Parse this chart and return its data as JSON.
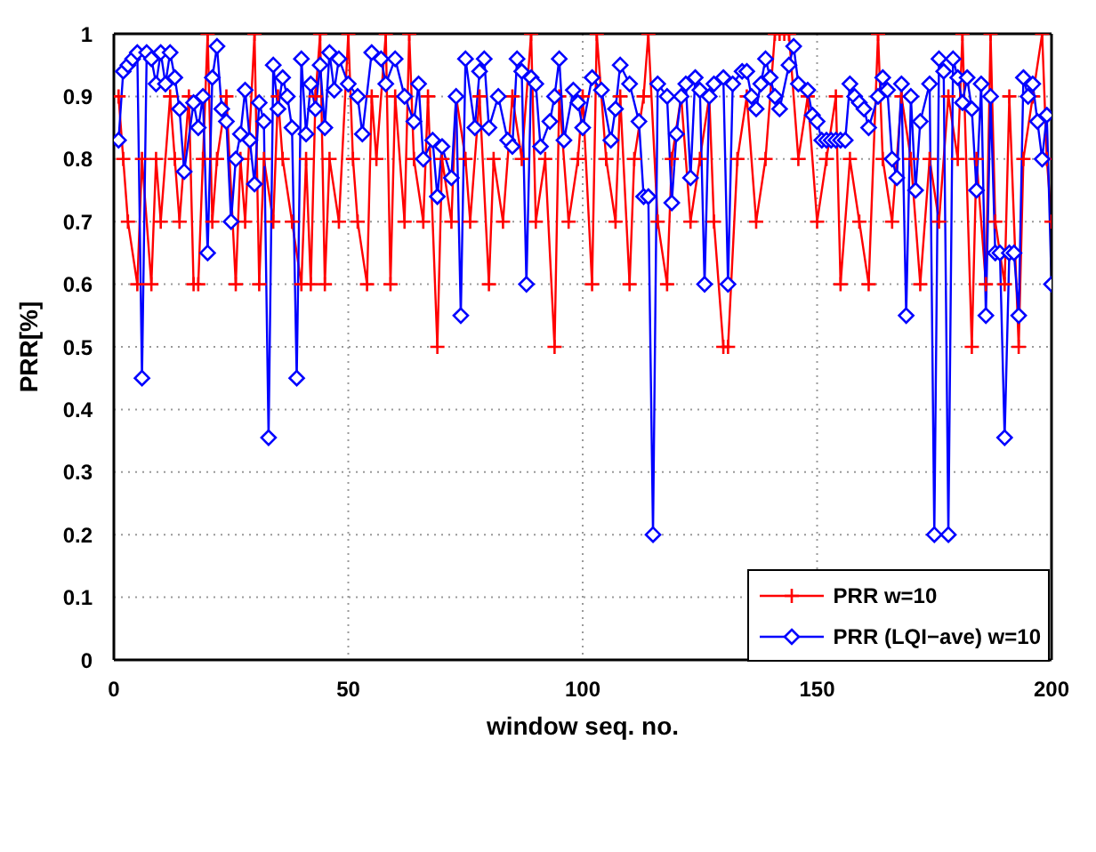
{
  "chart_data": {
    "type": "line",
    "xlabel": "window seq. no.",
    "ylabel": "PRR[%]",
    "xlim": [
      0,
      200
    ],
    "xticks": [
      0,
      50,
      100,
      150,
      200
    ],
    "ylim": [
      0,
      1
    ],
    "yticks": [
      0,
      0.1,
      0.2,
      0.3,
      0.4,
      0.5,
      0.6,
      0.7,
      0.8,
      0.9,
      1
    ],
    "grid": true,
    "legend": "bottom right",
    "series": [
      {
        "name": "PRR w=10",
        "color": "#ff0000",
        "marker": "cross",
        "x": [
          1,
          2,
          3,
          5,
          6,
          8,
          9,
          10,
          12,
          13,
          14,
          16,
          17,
          18,
          19,
          20,
          21,
          22,
          24,
          26,
          27,
          28,
          30,
          31,
          32,
          34,
          35,
          36,
          38,
          40,
          41,
          42,
          43,
          44,
          45,
          46,
          48,
          50,
          51,
          52,
          54,
          55,
          56,
          58,
          59,
          60,
          62,
          63,
          64,
          66,
          67,
          69,
          70,
          72,
          73,
          75,
          76,
          78,
          80,
          81,
          83,
          85,
          87,
          89,
          90,
          92,
          94,
          95,
          97,
          99,
          100,
          102,
          103,
          105,
          107,
          108,
          110,
          111,
          113,
          114,
          116,
          118,
          119,
          121,
          123,
          125,
          127,
          128,
          130,
          131,
          133,
          135,
          137,
          139,
          141,
          142,
          143,
          144,
          146,
          148,
          150,
          152,
          154,
          155,
          157,
          159,
          161,
          163,
          164,
          166,
          168,
          170,
          172,
          174,
          176,
          178,
          180,
          181,
          183,
          184,
          186,
          187,
          188,
          190,
          191,
          193,
          194,
          196,
          198,
          199,
          200
        ],
        "values": [
          0.9,
          0.8,
          0.7,
          0.6,
          0.8,
          0.6,
          0.8,
          0.7,
          0.9,
          0.8,
          0.7,
          0.9,
          0.6,
          0.6,
          0.8,
          1,
          0.7,
          0.8,
          0.9,
          0.6,
          0.8,
          0.7,
          1,
          0.6,
          0.8,
          0.7,
          0.9,
          0.8,
          0.7,
          0.6,
          0.8,
          0.6,
          0.9,
          1,
          0.6,
          0.8,
          0.7,
          1,
          0.8,
          0.7,
          0.6,
          0.9,
          0.8,
          1,
          0.6,
          0.9,
          0.7,
          1,
          0.8,
          0.7,
          0.9,
          0.5,
          0.8,
          0.7,
          0.9,
          0.8,
          0.7,
          0.9,
          0.6,
          0.8,
          0.7,
          0.9,
          0.8,
          1,
          0.7,
          0.8,
          0.5,
          0.9,
          0.7,
          0.8,
          0.9,
          0.6,
          1,
          0.8,
          0.7,
          0.9,
          0.6,
          0.8,
          0.9,
          1,
          0.7,
          0.6,
          0.8,
          0.9,
          0.7,
          0.8,
          0.9,
          0.7,
          0.5,
          0.5,
          0.8,
          0.9,
          0.7,
          0.8,
          1,
          1,
          1,
          1,
          0.8,
          0.9,
          0.7,
          0.8,
          0.9,
          0.6,
          0.8,
          0.7,
          0.6,
          1,
          0.8,
          0.7,
          0.9,
          0.8,
          0.6,
          0.8,
          0.7,
          0.9,
          0.8,
          1,
          0.5,
          0.8,
          0.6,
          1,
          0.7,
          0.6,
          0.9,
          0.5,
          0.8,
          0.9,
          1,
          0.8,
          0.7
        ]
      },
      {
        "name": "PRR (LQI−ave) w=10",
        "color": "#0000ff",
        "marker": "diamond",
        "x": [
          1,
          2,
          3,
          4,
          5,
          6,
          7,
          8,
          9,
          10,
          11,
          12,
          13,
          14,
          15,
          17,
          18,
          19,
          20,
          21,
          22,
          23,
          24,
          25,
          26,
          27,
          28,
          29,
          30,
          31,
          32,
          33,
          34,
          35,
          36,
          37,
          38,
          39,
          40,
          41,
          42,
          43,
          44,
          45,
          46,
          47,
          48,
          50,
          52,
          53,
          55,
          57,
          58,
          60,
          62,
          64,
          65,
          66,
          68,
          69,
          70,
          72,
          73,
          74,
          75,
          77,
          78,
          79,
          80,
          82,
          84,
          85,
          86,
          87,
          88,
          89,
          90,
          91,
          93,
          94,
          95,
          96,
          98,
          99,
          100,
          102,
          104,
          106,
          107,
          108,
          110,
          112,
          113,
          114,
          115,
          116,
          118,
          119,
          120,
          121,
          122,
          123,
          124,
          125,
          126,
          127,
          128,
          130,
          131,
          132,
          134,
          135,
          136,
          137,
          138,
          139,
          140,
          141,
          142,
          144,
          145,
          146,
          148,
          149,
          150,
          151,
          152,
          153,
          154,
          155,
          156,
          157,
          158,
          159,
          160,
          161,
          163,
          164,
          165,
          166,
          167,
          168,
          169,
          170,
          171,
          172,
          174,
          175,
          176,
          177,
          178,
          179,
          180,
          181,
          182,
          183,
          184,
          185,
          186,
          187,
          188,
          189,
          190,
          191,
          192,
          193,
          194,
          195,
          196,
          197,
          198,
          199,
          200
        ],
        "values": [
          0.83,
          0.94,
          0.95,
          0.96,
          0.97,
          0.45,
          0.97,
          0.96,
          0.92,
          0.97,
          0.92,
          0.97,
          0.93,
          0.88,
          0.78,
          0.89,
          0.85,
          0.9,
          0.65,
          0.93,
          0.98,
          0.88,
          0.86,
          0.7,
          0.8,
          0.84,
          0.91,
          0.83,
          0.76,
          0.89,
          0.86,
          0.355,
          0.95,
          0.88,
          0.93,
          0.9,
          0.85,
          0.45,
          0.96,
          0.84,
          0.92,
          0.88,
          0.95,
          0.85,
          0.97,
          0.91,
          0.96,
          0.92,
          0.9,
          0.84,
          0.97,
          0.96,
          0.92,
          0.96,
          0.9,
          0.86,
          0.92,
          0.8,
          0.83,
          0.74,
          0.82,
          0.77,
          0.9,
          0.55,
          0.96,
          0.85,
          0.94,
          0.96,
          0.85,
          0.9,
          0.83,
          0.82,
          0.96,
          0.94,
          0.6,
          0.93,
          0.92,
          0.82,
          0.86,
          0.9,
          0.96,
          0.83,
          0.91,
          0.89,
          0.85,
          0.93,
          0.91,
          0.83,
          0.88,
          0.95,
          0.92,
          0.86,
          0.74,
          0.74,
          0.2,
          0.92,
          0.9,
          0.73,
          0.84,
          0.9,
          0.92,
          0.77,
          0.93,
          0.91,
          0.6,
          0.9,
          0.92,
          0.93,
          0.6,
          0.92,
          0.94,
          0.94,
          0.9,
          0.88,
          0.92,
          0.96,
          0.93,
          0.9,
          0.88,
          0.95,
          0.98,
          0.92,
          0.91,
          0.87,
          0.86,
          0.83,
          0.83,
          0.83,
          0.83,
          0.83,
          0.83,
          0.92,
          0.9,
          0.89,
          0.88,
          0.85,
          0.9,
          0.93,
          0.91,
          0.8,
          0.77,
          0.92,
          0.55,
          0.9,
          0.75,
          0.86,
          0.92,
          0.2,
          0.96,
          0.94,
          0.2,
          0.96,
          0.93,
          0.89,
          0.93,
          0.88,
          0.75,
          0.92,
          0.55,
          0.9,
          0.65,
          0.65,
          0.355,
          0.65,
          0.65,
          0.55,
          0.93,
          0.9,
          0.92,
          0.86,
          0.8,
          0.87,
          0.6
        ]
      }
    ]
  }
}
